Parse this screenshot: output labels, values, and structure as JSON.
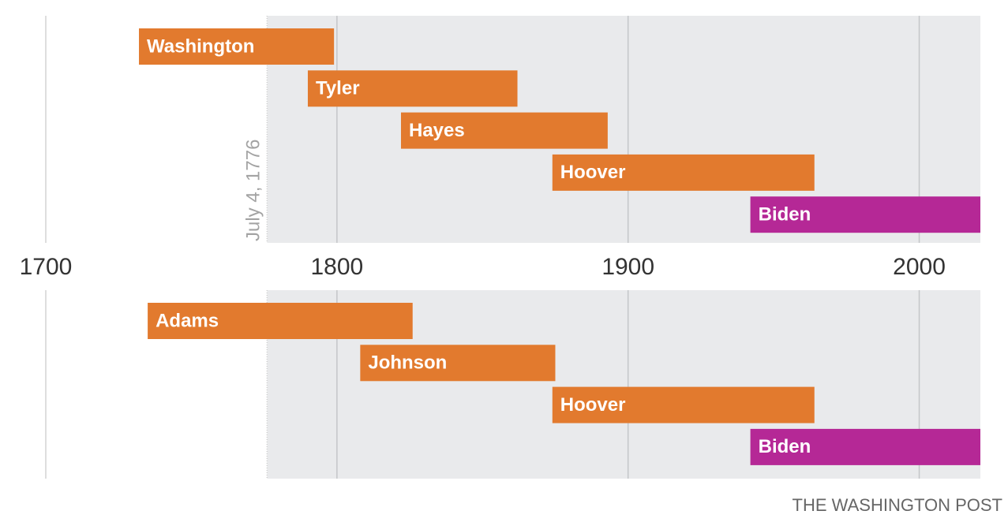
{
  "chart_data": [
    {
      "type": "timeline",
      "categories": [
        "Washington",
        "Tyler",
        "Hayes",
        "Hoover",
        "Biden"
      ],
      "starts": [
        1732,
        1790,
        1822,
        1874,
        1942
      ],
      "ends": [
        1799,
        1862,
        1893,
        1964,
        2021
      ],
      "colors": [
        "#e27a2e",
        "#e27a2e",
        "#e27a2e",
        "#e27a2e",
        "#b52896"
      ],
      "xlim": [
        1700,
        2021
      ],
      "xticks": [
        1700,
        1800,
        1900,
        2000
      ],
      "grid": true,
      "reference_x": 1776,
      "annotation": "July 4, 1776"
    },
    {
      "type": "timeline",
      "categories": [
        "Adams",
        "Johnson",
        "Hoover",
        "Biden"
      ],
      "starts": [
        1735,
        1808,
        1874,
        1942
      ],
      "ends": [
        1826,
        1875,
        1964,
        2021
      ],
      "colors": [
        "#e27a2e",
        "#e27a2e",
        "#e27a2e",
        "#b52896"
      ],
      "xlim": [
        1700,
        2021
      ],
      "grid": true,
      "reference_x": 1776
    }
  ],
  "source": "THE WASHINGTON POST"
}
